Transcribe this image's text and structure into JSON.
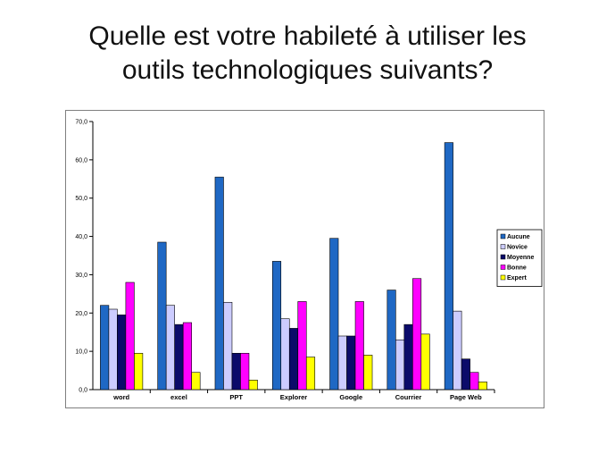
{
  "slide": {
    "title_line1": "Quelle est votre habileté à utiliser les",
    "title_line2": "outils technologiques suivants?"
  },
  "chart_data": {
    "type": "bar",
    "categories": [
      "word",
      "excel",
      "PPT",
      "Explorer",
      "Google",
      "Courrier",
      "Page Web"
    ],
    "series": [
      {
        "name": "Aucune",
        "color": "#1f68c4",
        "values": [
          22.0,
          38.5,
          55.5,
          33.5,
          39.5,
          26.0,
          64.5
        ]
      },
      {
        "name": "Novice",
        "color": "#ccccff",
        "values": [
          21.0,
          22.0,
          22.8,
          18.5,
          14.0,
          13.0,
          20.5
        ]
      },
      {
        "name": "Moyenne",
        "color": "#0b0b6a",
        "values": [
          19.5,
          17.0,
          9.5,
          16.0,
          14.0,
          17.0,
          8.0
        ]
      },
      {
        "name": "Bonne",
        "color": "#ff00ff",
        "values": [
          28.0,
          17.5,
          9.5,
          23.0,
          23.0,
          29.0,
          4.5
        ]
      },
      {
        "name": "Expert",
        "color": "#ffff00",
        "values": [
          9.5,
          4.5,
          2.5,
          8.5,
          9.0,
          14.5,
          2.0
        ]
      }
    ],
    "yticks": [
      "0,0",
      "10,0",
      "20,0",
      "30,0",
      "40,0",
      "50,0",
      "60,0",
      "70,0"
    ],
    "ylim": [
      0,
      70
    ],
    "legend": "right",
    "grid": false
  }
}
